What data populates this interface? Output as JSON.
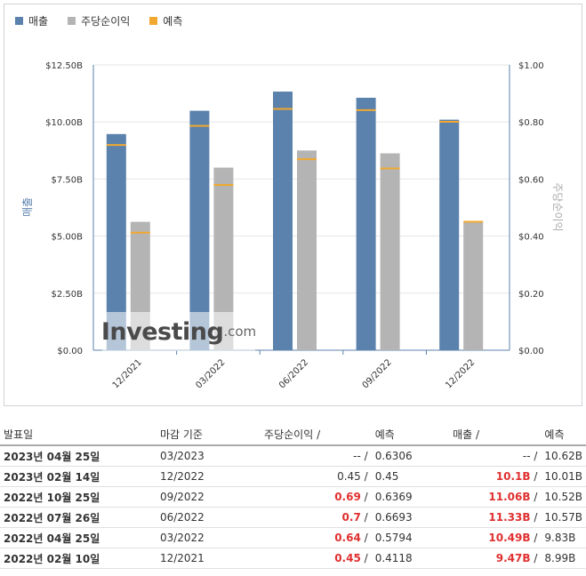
{
  "legend": [
    {
      "label": "매출",
      "color": "#5b82ac"
    },
    {
      "label": "주당순이익",
      "color": "#b4b4b4"
    },
    {
      "label": "예측",
      "color": "#f0a830"
    }
  ],
  "chart_data": {
    "type": "bar",
    "categories": [
      "12/2021",
      "03/2022",
      "06/2022",
      "09/2022",
      "12/2022"
    ],
    "series": [
      {
        "name": "매출",
        "axis": "left",
        "values": [
          9.47,
          10.49,
          11.33,
          11.06,
          10.1
        ],
        "forecast": [
          8.99,
          9.83,
          10.57,
          10.52,
          10.01
        ]
      },
      {
        "name": "주당순이익",
        "axis": "right",
        "values": [
          0.45,
          0.64,
          0.7,
          0.69,
          0.45
        ],
        "forecast": [
          0.4118,
          0.5794,
          0.6693,
          0.6369,
          0.45
        ]
      }
    ],
    "ylabel_left": "매출",
    "ylabel_right": "주당순이익",
    "yticks_left": [
      "$0.00",
      "$2.50B",
      "$5.00B",
      "$7.50B",
      "$10.00B",
      "$12.50B"
    ],
    "yticks_right": [
      "$0.00",
      "$0.20",
      "$0.40",
      "$0.60",
      "$0.80",
      "$1.00"
    ],
    "ylim_left": [
      0,
      12.5
    ],
    "ylim_right": [
      0,
      1.0
    ]
  },
  "watermark": {
    "brand": "Investing",
    "suffix": ".com"
  },
  "table": {
    "headers": {
      "date": "발표일",
      "period": "마감 기준",
      "eps": "주당순이익",
      "eps_sep": "/",
      "eps_fc": "예측",
      "rev": "매출",
      "rev_sep": "/",
      "rev_fc": "예측"
    },
    "rows": [
      {
        "date": "2023년 04월 25일",
        "period": "03/2023",
        "eps": "--",
        "eps_fc": "0.6306",
        "rev": "--",
        "rev_fc": "10.62B",
        "eps_red": false,
        "rev_red": false
      },
      {
        "date": "2023년 02월 14일",
        "period": "12/2022",
        "eps": "0.45",
        "eps_fc": "0.45",
        "rev": "10.1B",
        "rev_fc": "10.01B",
        "eps_red": false,
        "rev_red": true
      },
      {
        "date": "2022년 10월 25일",
        "period": "09/2022",
        "eps": "0.69",
        "eps_fc": "0.6369",
        "rev": "11.06B",
        "rev_fc": "10.52B",
        "eps_red": true,
        "rev_red": true
      },
      {
        "date": "2022년 07월 26일",
        "period": "06/2022",
        "eps": "0.7",
        "eps_fc": "0.6693",
        "rev": "11.33B",
        "rev_fc": "10.57B",
        "eps_red": true,
        "rev_red": true
      },
      {
        "date": "2022년 04월 25일",
        "period": "03/2022",
        "eps": "0.64",
        "eps_fc": "0.5794",
        "rev": "10.49B",
        "rev_fc": "9.83B",
        "eps_red": true,
        "rev_red": true
      },
      {
        "date": "2022년 02월 10일",
        "period": "12/2021",
        "eps": "0.45",
        "eps_fc": "0.4118",
        "rev": "9.47B",
        "rev_fc": "8.99B",
        "eps_red": true,
        "rev_red": true
      }
    ]
  }
}
